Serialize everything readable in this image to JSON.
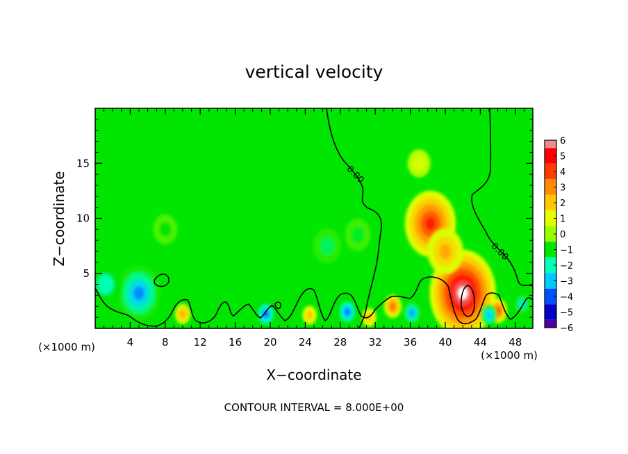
{
  "chart_data": {
    "type": "heatmap",
    "title": "vertical velocity",
    "xlabel": "X−coordinate",
    "ylabel": "Z−coordinate",
    "x_unit_left": "(×1000 m)",
    "x_unit_right": "(×1000 m)",
    "footer": "CONTOUR INTERVAL = 8.000E+00",
    "xlim": [
      0,
      50
    ],
    "ylim": [
      0,
      20
    ],
    "x_ticks": [
      4,
      8,
      12,
      16,
      20,
      24,
      28,
      32,
      36,
      40,
      44,
      48
    ],
    "x_tick_labels": [
      "4",
      "8",
      "12",
      "16",
      "20",
      "24",
      "28",
      "32",
      "36",
      "40",
      "44",
      "48"
    ],
    "y_ticks": [
      5,
      10,
      15
    ],
    "y_tick_labels": [
      "5",
      "10",
      "15"
    ],
    "contour_labels": [
      {
        "text": "0.00",
        "x": 29.5,
        "z": 13.8
      },
      {
        "text": "0.00",
        "x": 46.0,
        "z": 6.8
      }
    ],
    "colorbar": {
      "levels": [
        6,
        5,
        4,
        3,
        2,
        1,
        0,
        -1,
        -2,
        -3,
        -4,
        -5,
        -6
      ],
      "labels": [
        "6",
        "5",
        "4",
        "3",
        "2",
        "1",
        "0",
        "−1",
        "−2",
        "−3",
        "−4",
        "−5",
        "−6"
      ],
      "colors": [
        "#f08c8c",
        "#ff0000",
        "#ff3c00",
        "#ff8c00",
        "#ffc800",
        "#e6ff00",
        "#96ff00",
        "#00e600",
        "#00ffb4",
        "#00c8ff",
        "#0050ff",
        "#0000c8",
        "#5000a0"
      ]
    },
    "features": [
      {
        "x": 38.3,
        "z": 9.5,
        "value": 4.5
      },
      {
        "x": 42.0,
        "z": 3.2,
        "value": 6.5
      },
      {
        "x": 46.0,
        "z": 1.6,
        "value": 4.0
      },
      {
        "x": 40.0,
        "z": 7.0,
        "value": 2.5
      },
      {
        "x": 5.0,
        "z": 3.2,
        "value": -3.5
      },
      {
        "x": 1.2,
        "z": 4.0,
        "value": -2.0
      },
      {
        "x": 19.5,
        "z": 1.3,
        "value": -4.0
      },
      {
        "x": 28.8,
        "z": 1.5,
        "value": -4.0
      },
      {
        "x": 36.2,
        "z": 1.4,
        "value": -3.5
      },
      {
        "x": 45.0,
        "z": 1.2,
        "value": -3.0
      },
      {
        "x": 48.8,
        "z": 2.2,
        "value": -2.5
      },
      {
        "x": 10.0,
        "z": 1.3,
        "value": 2.5
      },
      {
        "x": 34.0,
        "z": 2.0,
        "value": 3.5
      },
      {
        "x": 24.5,
        "z": 1.2,
        "value": 2.0
      },
      {
        "x": 31.3,
        "z": 1.0,
        "value": 2.0
      },
      {
        "x": 26.5,
        "z": 7.5,
        "value": -1.5
      },
      {
        "x": 30.0,
        "z": 8.5,
        "value": -1.2
      },
      {
        "x": 8.0,
        "z": 9.0,
        "value": -1.0
      },
      {
        "x": 37.0,
        "z": 15.0,
        "value": 0.8
      }
    ]
  }
}
